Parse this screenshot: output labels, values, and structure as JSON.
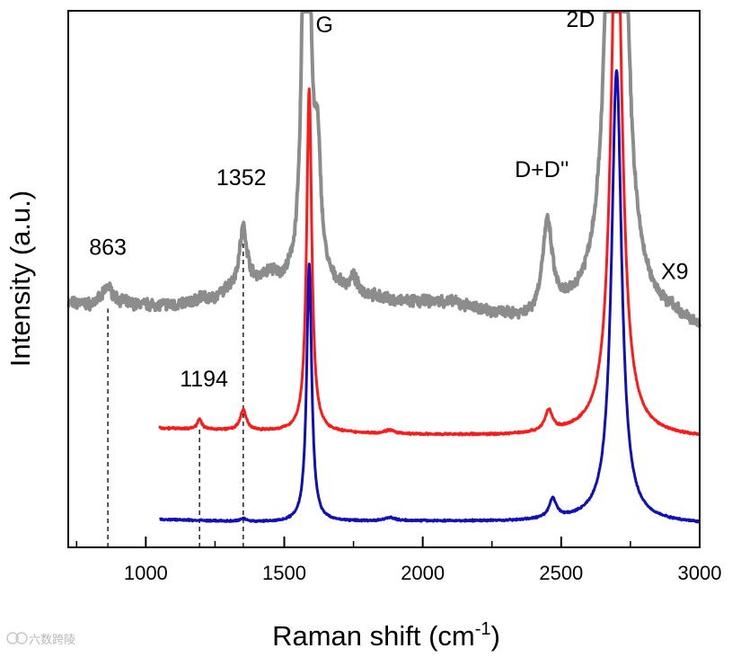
{
  "chart_data": {
    "type": "line",
    "title": "",
    "xlabel": "Raman shift (cm",
    "xlabel_sup": "-1",
    "xlabel_close": ")",
    "ylabel": "Intensity (a.u.)",
    "xlim": [
      720,
      3000
    ],
    "ylim": [
      0,
      100
    ],
    "x_ticks": [
      1000,
      1500,
      2000,
      2500,
      3000
    ],
    "x_minor_ticks": [
      750,
      1250,
      1750,
      2250,
      2750
    ],
    "y_ticks_shown": false,
    "series": [
      {
        "name": "upper (x9, gray)",
        "color": "#8c8c8c",
        "x_range": [
          720,
          3000
        ],
        "baseline": [
          [
            720,
            45.5
          ],
          [
            800,
            45.2
          ],
          [
            863,
            46.5
          ],
          [
            950,
            45.2
          ],
          [
            1100,
            45.0
          ],
          [
            1250,
            46.0
          ],
          [
            1300,
            47.5
          ],
          [
            1400,
            48.5
          ],
          [
            1500,
            48.0
          ],
          [
            1750,
            47.0
          ],
          [
            1900,
            45.5
          ],
          [
            2100,
            45.3
          ],
          [
            2300,
            42.5
          ],
          [
            2400,
            41.5
          ],
          [
            2600,
            43.0
          ],
          [
            2900,
            42.0
          ],
          [
            3000,
            40.0
          ]
        ],
        "peaks": [
          {
            "center": 863,
            "height": 2.2,
            "width": 15
          },
          {
            "center": 1200,
            "height": 0.8,
            "width": 10
          },
          {
            "center": 1352,
            "height": 11.0,
            "width": 17
          },
          {
            "center": 1450,
            "height": 2.0,
            "width": 25
          },
          {
            "center": 1580,
            "height": 140,
            "width": 12
          },
          {
            "center": 1620,
            "height": 22,
            "width": 15
          },
          {
            "center": 1750,
            "height": 2.5,
            "width": 15
          },
          {
            "center": 2450,
            "height": 17.0,
            "width": 22
          },
          {
            "center": 2700,
            "height": 220,
            "width": 25
          }
        ]
      },
      {
        "name": "middle (red)",
        "color": "#ff1a1a",
        "x_range": [
          1050,
          3000
        ],
        "baseline": [
          [
            1050,
            22.2
          ],
          [
            1300,
            21.8
          ],
          [
            1500,
            21.5
          ],
          [
            1900,
            21.0
          ],
          [
            2300,
            20.8
          ],
          [
            2600,
            21.2
          ],
          [
            3000,
            20.4
          ]
        ],
        "peaks": [
          {
            "center": 1194,
            "height": 2.0,
            "width": 9
          },
          {
            "center": 1352,
            "height": 3.8,
            "width": 13
          },
          {
            "center": 1590,
            "height": 64.0,
            "width": 11
          },
          {
            "center": 1880,
            "height": 0.7,
            "width": 20
          },
          {
            "center": 2455,
            "height": 3.8,
            "width": 16
          },
          {
            "center": 2700,
            "height": 103.0,
            "width": 24
          }
        ]
      },
      {
        "name": "lower (blue)",
        "color": "#1010b8",
        "x_range": [
          1050,
          3000
        ],
        "baseline": [
          [
            1050,
            5.2
          ],
          [
            1300,
            4.8
          ],
          [
            1500,
            4.6
          ],
          [
            1900,
            4.9
          ],
          [
            2300,
            4.8
          ],
          [
            2600,
            5.0
          ],
          [
            3000,
            4.4
          ]
        ],
        "peaks": [
          {
            "center": 1352,
            "height": 0.6,
            "width": 12
          },
          {
            "center": 1590,
            "height": 48.0,
            "width": 11
          },
          {
            "center": 1880,
            "height": 0.6,
            "width": 20
          },
          {
            "center": 2470,
            "height": 3.6,
            "width": 16
          },
          {
            "center": 2700,
            "height": 84.0,
            "width": 22
          }
        ]
      }
    ],
    "annotations": [
      {
        "id": "863",
        "text": "863",
        "x": 863,
        "y": 54.5
      },
      {
        "id": "1352",
        "text": "1352",
        "x": 1345,
        "y": 67.5
      },
      {
        "id": "G",
        "text": "G",
        "x": 1645,
        "y": 96.0
      },
      {
        "id": "2D",
        "text": "2D",
        "x": 2570,
        "y": 97.0
      },
      {
        "id": "DD",
        "text": "D+D''",
        "x": 2430,
        "y": 69.0
      },
      {
        "id": "X9",
        "text": "X9",
        "x": 2910,
        "y": 50.0
      },
      {
        "id": "1194",
        "text": "1194",
        "x": 1210,
        "y": 30.0
      }
    ],
    "reference_lines": [
      {
        "id": "863",
        "x": 863,
        "y_from": 0,
        "y_to": 44.5
      },
      {
        "id": "1194",
        "x": 1194,
        "y_from": 0,
        "y_to": 22.5
      },
      {
        "id": "1352",
        "x": 1352,
        "y_from": 0,
        "y_to": 57.0
      }
    ]
  },
  "watermark": "六数跨陵"
}
